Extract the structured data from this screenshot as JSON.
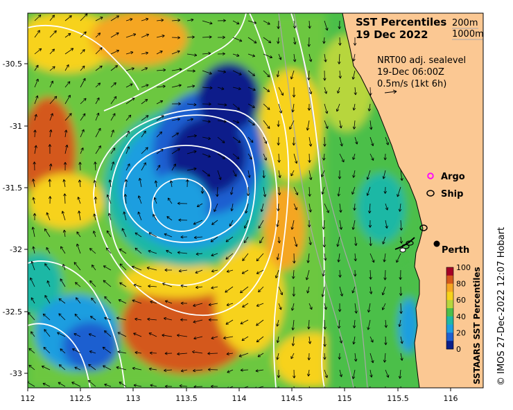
{
  "title": {
    "line1": "SST Percentiles",
    "line2": "19 Dec 2022"
  },
  "depth_contours": [
    "200m",
    "1000m"
  ],
  "current_info": {
    "line1": "NRT00 adj. sealevel",
    "line2": "19-Dec 06:00Z",
    "line3": "0.5m/s (1kt 6h)"
  },
  "legend": {
    "argo": "Argo",
    "ship": "Ship"
  },
  "place": "Perth",
  "credit": "© IMOS 27-Dec-2022 12:07 Hobart",
  "colorbar": {
    "title": "SSTAARS SST Percentiles",
    "ticks": [
      "100",
      "80",
      "60",
      "40",
      "20",
      "0"
    ],
    "colors": [
      "#a50026",
      "#d4581c",
      "#f5a623",
      "#f7d21b",
      "#b7d63c",
      "#4cbf4a",
      "#1fb8a5",
      "#1e9ee0",
      "#1e5fd0",
      "#0a1f8a"
    ]
  },
  "axes": {
    "x_ticks": [
      "112",
      "112.5",
      "113",
      "113.5",
      "114",
      "114.5",
      "115",
      "115.5",
      "116"
    ],
    "y_ticks": [
      "-30.5",
      "-31",
      "-31.5",
      "-32",
      "-32.5",
      "-33"
    ]
  },
  "colors": {
    "land": "#fbc893",
    "contour": "#ffffff",
    "bathy": "#a8a8a8"
  }
}
